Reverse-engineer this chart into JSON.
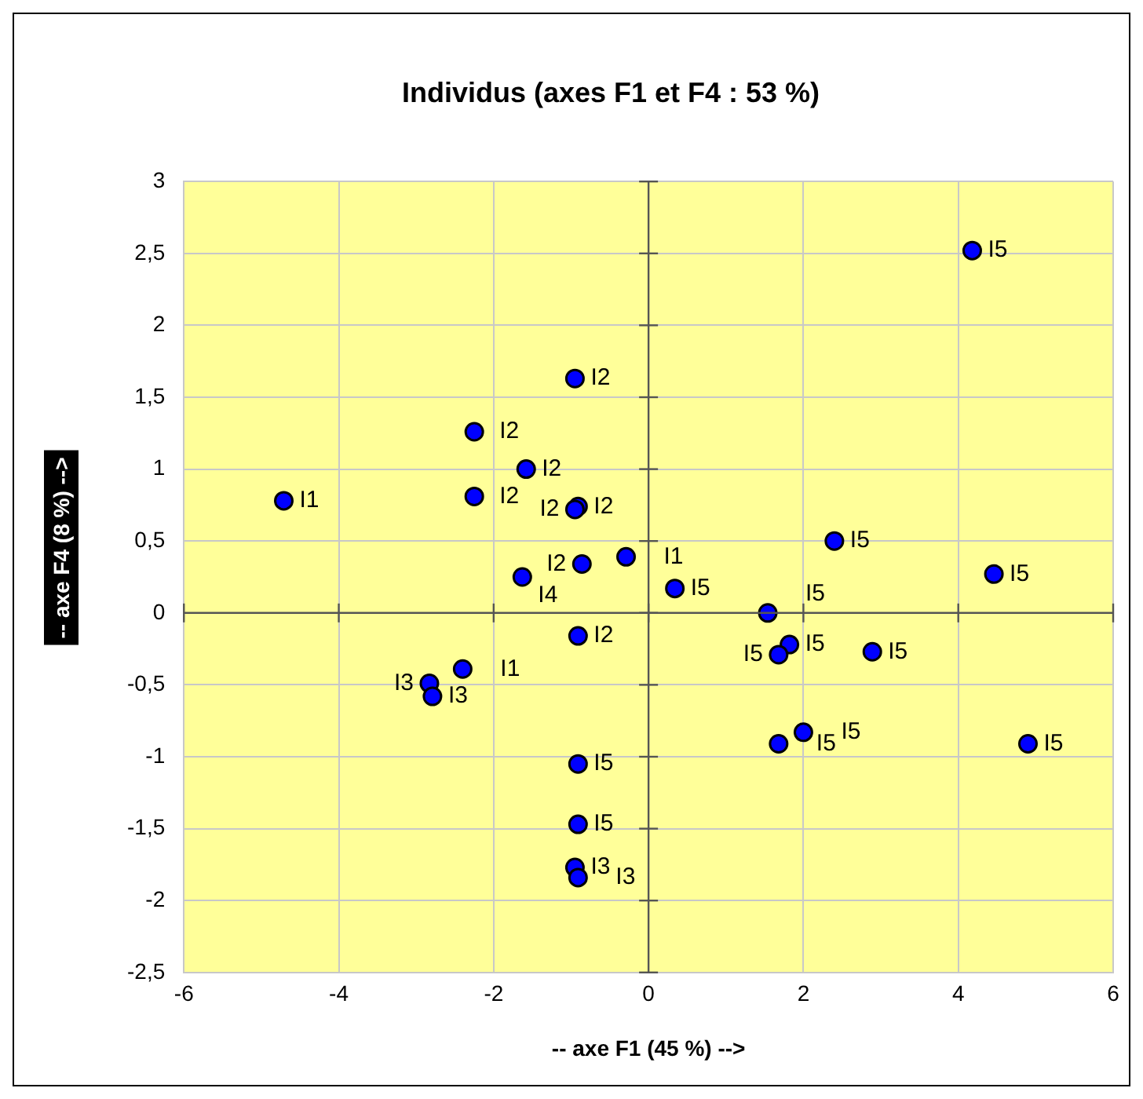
{
  "chart_data": {
    "type": "scatter",
    "title": "Individus (axes F1 et F4 : 53 %)",
    "xlabel": "-- axe F1 (45 %) -->",
    "ylabel": "-- axe F4 (8 %) -->",
    "xlim": [
      -6,
      6
    ],
    "xticks": [
      -6,
      -4,
      -2,
      0,
      2,
      4,
      6
    ],
    "ylim": [
      -2.5,
      3
    ],
    "yticks": [
      {
        "value": -2.5,
        "label": "-2,5"
      },
      -2,
      {
        "value": -1.5,
        "label": "-1,5"
      },
      -1,
      {
        "value": -0.5,
        "label": "-0,5"
      },
      0,
      {
        "value": 0.5,
        "label": "0,5"
      },
      1,
      {
        "value": 1.5,
        "label": "1,5"
      },
      2,
      {
        "value": 2.5,
        "label": "2,5"
      },
      3
    ],
    "grid": true,
    "legend": false,
    "marker": "circle",
    "series": [
      {
        "name": "I1",
        "color": "#0000ff",
        "x": [
          -4.71,
          -0.29,
          -2.4
        ],
        "values": [
          0.78,
          0.39,
          -0.39
        ]
      },
      {
        "name": "I2",
        "color": "#0000ff",
        "x": [
          -0.95,
          -2.25,
          -1.58,
          -2.25,
          -0.91,
          -0.95,
          -0.86,
          -0.91
        ],
        "values": [
          1.63,
          1.26,
          1.0,
          0.81,
          0.74,
          0.72,
          0.34,
          -0.16
        ]
      },
      {
        "name": "I3",
        "color": "#0000ff",
        "x": [
          -2.83,
          -2.79,
          -0.95,
          -0.91
        ],
        "values": [
          -0.49,
          -0.58,
          -1.77,
          -1.84
        ]
      },
      {
        "name": "I4",
        "color": "#0000ff",
        "x": [
          -1.63
        ],
        "values": [
          0.25
        ]
      },
      {
        "name": "I5",
        "color": "#0000ff",
        "x": [
          4.18,
          2.4,
          4.46,
          0.34,
          1.54,
          1.82,
          1.68,
          2.89,
          -0.91,
          -0.91,
          1.68,
          2.0,
          4.9
        ],
        "values": [
          2.52,
          0.5,
          0.27,
          0.17,
          0.0,
          -0.22,
          -0.29,
          -0.27,
          -1.05,
          -1.47,
          -0.91,
          -0.83,
          -0.91
        ]
      }
    ]
  }
}
